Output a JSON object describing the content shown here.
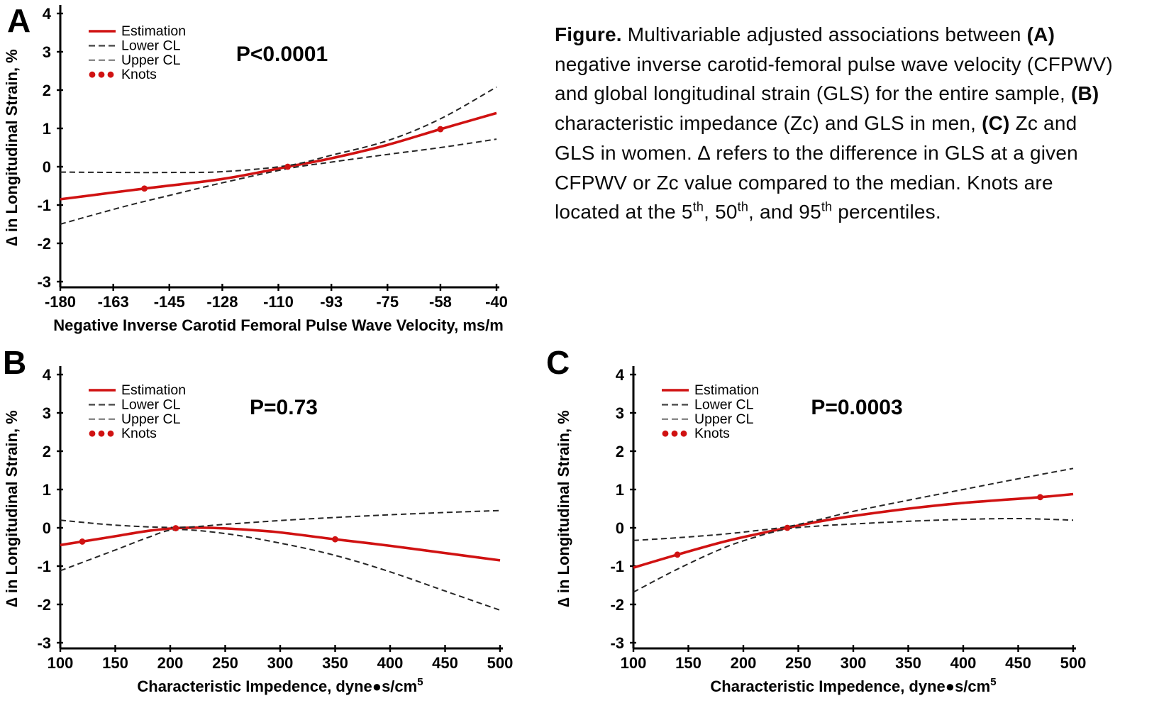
{
  "figure": {
    "background": "#ffffff"
  },
  "colors": {
    "estimation": "#d01212",
    "knots": "#d01212",
    "cl_line": "#262626",
    "legend_lower_dash": "#4a4a4a",
    "legend_upper_dash": "#8a8a8a",
    "axis": "#000000",
    "text": "#000000"
  },
  "legend": {
    "items": [
      {
        "label": "Estimation",
        "swatch": "solid-red-line"
      },
      {
        "label": "Lower CL",
        "swatch": "dark-dashed-line"
      },
      {
        "label": "Upper CL",
        "swatch": "light-dashed-line"
      },
      {
        "label": "Knots",
        "swatch": "red-dots"
      }
    ]
  },
  "caption": {
    "segments": [
      {
        "text": "Figure.",
        "bold": true
      },
      {
        "text": " Multivariable adjusted associations between ",
        "bold": false
      },
      {
        "text": "(A)",
        "bold": true
      },
      {
        "text": " negative inverse carotid-femoral pulse wave velocity (CFPWV) and global longitudinal strain (GLS) for the entire sample, ",
        "bold": false
      },
      {
        "text": "(B)",
        "bold": true
      },
      {
        "text": " characteristic impedance (Zc) and GLS in men, ",
        "bold": false
      },
      {
        "text": "(C)",
        "bold": true
      },
      {
        "text": " Zc and GLS in women. ∆ refers to the difference in GLS at a given CFPWV or Zc value compared to the median. Knots are located at the 5",
        "bold": false
      },
      {
        "text": "th",
        "bold": false,
        "sup": true
      },
      {
        "text": ", 50",
        "bold": false
      },
      {
        "text": "th",
        "bold": false,
        "sup": true
      },
      {
        "text": ", and 95",
        "bold": false
      },
      {
        "text": "th",
        "bold": false,
        "sup": true
      },
      {
        "text": " percentiles.",
        "bold": false
      }
    ]
  },
  "chart_data": [
    {
      "panel": "A",
      "type": "line",
      "p_value": "P<0.0001",
      "xlabel": "Negative Inverse Carotid Femoral Pulse Wave Velocity, ms/m",
      "xlabel_sup": "",
      "ylabel": "∆ in Longitudinal Strain, %",
      "xlim": [
        -180,
        -40
      ],
      "ylim": [
        -3,
        4
      ],
      "xticks": [
        -180,
        -163,
        -145,
        -128,
        -110,
        -93,
        -75,
        -58,
        -40
      ],
      "yticks": [
        -3,
        -2,
        -1,
        0,
        1,
        2,
        3,
        4
      ],
      "series": [
        {
          "name": "Estimation",
          "style": "solid",
          "points": [
            [
              -180,
              -0.85
            ],
            [
              -153,
              -0.57
            ],
            [
              -128,
              -0.32
            ],
            [
              -107,
              0
            ],
            [
              -93,
              0.22
            ],
            [
              -75,
              0.57
            ],
            [
              -58,
              0.98
            ],
            [
              -40,
              1.4
            ]
          ]
        },
        {
          "name": "Lower CL",
          "style": "dashed",
          "points": [
            [
              -180,
              -1.5
            ],
            [
              -160,
              -1.05
            ],
            [
              -145,
              -0.75
            ],
            [
              -128,
              -0.42
            ],
            [
              -107,
              -0.05
            ],
            [
              -93,
              0.12
            ],
            [
              -75,
              0.32
            ],
            [
              -58,
              0.5
            ],
            [
              -40,
              0.72
            ]
          ]
        },
        {
          "name": "Upper CL",
          "style": "dashed",
          "points": [
            [
              -180,
              -0.14
            ],
            [
              -160,
              -0.15
            ],
            [
              -145,
              -0.15
            ],
            [
              -128,
              -0.13
            ],
            [
              -107,
              0.03
            ],
            [
              -93,
              0.3
            ],
            [
              -75,
              0.68
            ],
            [
              -58,
              1.25
            ],
            [
              -40,
              2.08
            ]
          ]
        }
      ],
      "knots": [
        [
          -153,
          -0.57
        ],
        [
          -107,
          0
        ],
        [
          -58,
          0.98
        ]
      ]
    },
    {
      "panel": "B",
      "type": "line",
      "p_value": "P=0.73",
      "xlabel": "Characteristic Impedence, dyne●s/cm",
      "xlabel_sup": "5",
      "ylabel": "∆ in Longitudinal Strain, %",
      "xlim": [
        100,
        500
      ],
      "ylim": [
        -3,
        4
      ],
      "xticks": [
        100,
        150,
        200,
        250,
        300,
        350,
        400,
        450,
        500
      ],
      "yticks": [
        -3,
        -2,
        -1,
        0,
        1,
        2,
        3,
        4
      ],
      "series": [
        {
          "name": "Estimation",
          "style": "solid",
          "points": [
            [
              100,
              -0.45
            ],
            [
              120,
              -0.36
            ],
            [
              150,
              -0.22
            ],
            [
              180,
              -0.08
            ],
            [
              205,
              -0.01
            ],
            [
              235,
              0
            ],
            [
              270,
              -0.05
            ],
            [
              300,
              -0.12
            ],
            [
              350,
              -0.3
            ],
            [
              400,
              -0.47
            ],
            [
              450,
              -0.66
            ],
            [
              500,
              -0.85
            ]
          ]
        },
        {
          "name": "Lower CL",
          "style": "dashed",
          "points": [
            [
              100,
              -1.12
            ],
            [
              150,
              -0.58
            ],
            [
              180,
              -0.25
            ],
            [
              205,
              -0.05
            ],
            [
              250,
              -0.15
            ],
            [
              300,
              -0.4
            ],
            [
              350,
              -0.72
            ],
            [
              400,
              -1.15
            ],
            [
              450,
              -1.65
            ],
            [
              500,
              -2.15
            ]
          ]
        },
        {
          "name": "Upper CL",
          "style": "dashed",
          "points": [
            [
              100,
              0.2
            ],
            [
              150,
              0.07
            ],
            [
              205,
              0.01
            ],
            [
              250,
              0.09
            ],
            [
              300,
              0.19
            ],
            [
              350,
              0.27
            ],
            [
              400,
              0.34
            ],
            [
              450,
              0.4
            ],
            [
              500,
              0.45
            ]
          ]
        }
      ],
      "knots": [
        [
          120,
          -0.36
        ],
        [
          205,
          -0.01
        ],
        [
          350,
          -0.3
        ]
      ]
    },
    {
      "panel": "C",
      "type": "line",
      "p_value": "P=0.0003",
      "xlabel": "Characteristic Impedence, dyne●s/cm",
      "xlabel_sup": "5",
      "ylabel": "∆ in Longitudinal Strain, %",
      "xlim": [
        100,
        500
      ],
      "ylim": [
        -3,
        4
      ],
      "xticks": [
        100,
        150,
        200,
        250,
        300,
        350,
        400,
        450,
        500
      ],
      "yticks": [
        -3,
        -2,
        -1,
        0,
        1,
        2,
        3,
        4
      ],
      "series": [
        {
          "name": "Estimation",
          "style": "solid",
          "points": [
            [
              100,
              -1.04
            ],
            [
              140,
              -0.7
            ],
            [
              180,
              -0.38
            ],
            [
              210,
              -0.18
            ],
            [
              240,
              0
            ],
            [
              270,
              0.17
            ],
            [
              300,
              0.31
            ],
            [
              350,
              0.5
            ],
            [
              400,
              0.65
            ],
            [
              470,
              0.8
            ],
            [
              500,
              0.88
            ]
          ]
        },
        {
          "name": "Lower CL",
          "style": "dashed",
          "points": [
            [
              100,
              -1.68
            ],
            [
              140,
              -1.08
            ],
            [
              180,
              -0.55
            ],
            [
              210,
              -0.25
            ],
            [
              240,
              -0.03
            ],
            [
              270,
              0.05
            ],
            [
              300,
              0.1
            ],
            [
              350,
              0.17
            ],
            [
              400,
              0.22
            ],
            [
              450,
              0.24
            ],
            [
              500,
              0.2
            ]
          ]
        },
        {
          "name": "Upper CL",
          "style": "dashed",
          "points": [
            [
              100,
              -0.33
            ],
            [
              140,
              -0.26
            ],
            [
              180,
              -0.17
            ],
            [
              210,
              -0.08
            ],
            [
              240,
              0.03
            ],
            [
              270,
              0.22
            ],
            [
              300,
              0.43
            ],
            [
              350,
              0.72
            ],
            [
              400,
              1.0
            ],
            [
              450,
              1.28
            ],
            [
              500,
              1.55
            ]
          ]
        }
      ],
      "knots": [
        [
          140,
          -0.7
        ],
        [
          240,
          0
        ],
        [
          470,
          0.8
        ]
      ]
    }
  ]
}
